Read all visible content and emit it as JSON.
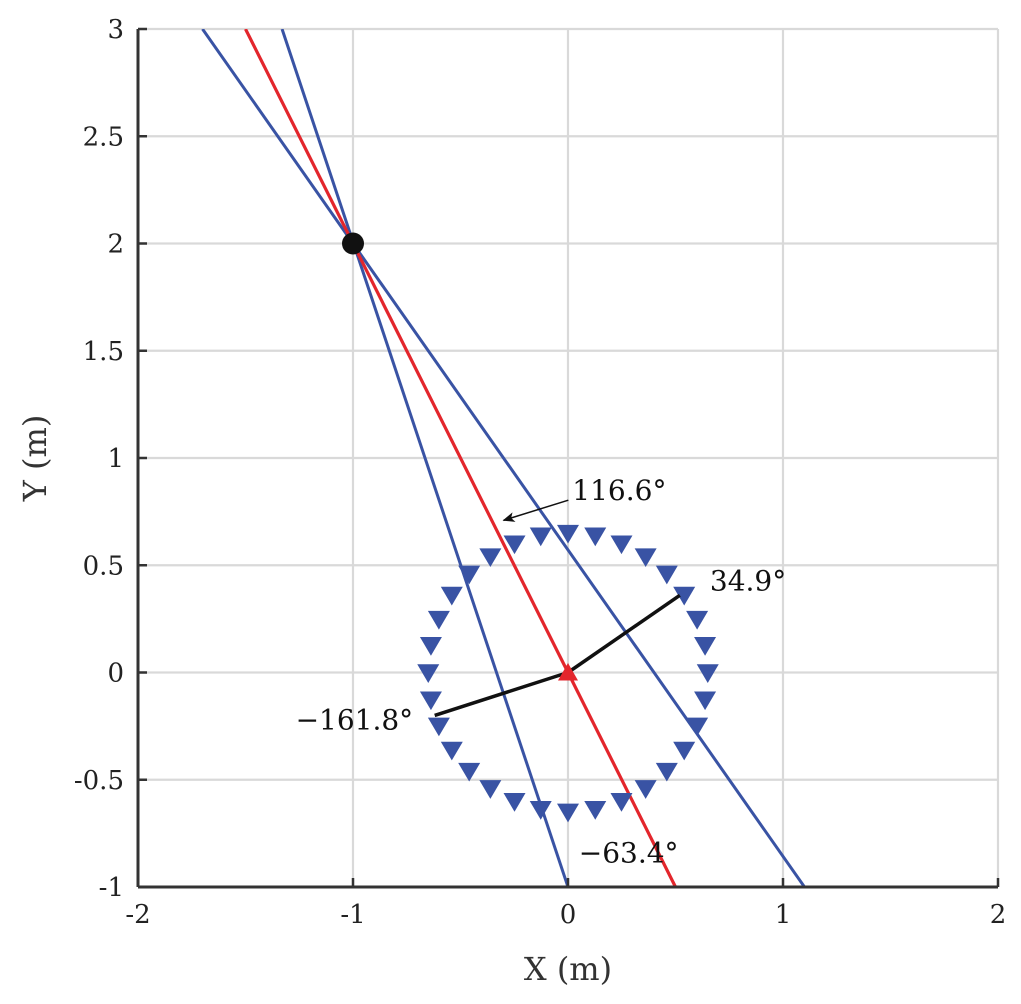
{
  "chart_data": {
    "type": "line",
    "title": "",
    "xlabel": "X (m)",
    "ylabel": "Y (m)",
    "xlim": [
      -2,
      2
    ],
    "ylim": [
      -1,
      3
    ],
    "xticks": [
      -2,
      -1,
      0,
      1,
      2
    ],
    "xtick_labels": [
      "-2",
      "-1",
      "0",
      "1",
      "2"
    ],
    "yticks": [
      -1,
      -0.5,
      0,
      0.5,
      1,
      1.5,
      2,
      2.5,
      3
    ],
    "ytick_labels": [
      "-1",
      "-0.5",
      "0",
      "0.5",
      "1",
      "1.5",
      "2",
      "2.5",
      "3"
    ],
    "grid": true,
    "colors": {
      "blue": "#3953a4",
      "red": "#e3262c",
      "black": "#111111",
      "grid": "#d9d9d9",
      "axis": "#333333"
    },
    "source": {
      "x": -1,
      "y": 2
    },
    "array_center": {
      "x": 0,
      "y": 0
    },
    "array_radius": 0.65,
    "array_element_count": 32,
    "lines": [
      {
        "id": "red-doa-line",
        "color": "red",
        "points": [
          [
            -1.5,
            3
          ],
          [
            0.5,
            -1
          ]
        ]
      },
      {
        "id": "blue-line-1",
        "color": "blue",
        "points": [
          [
            -1.7,
            3
          ],
          [
            1.1,
            -1
          ]
        ]
      },
      {
        "id": "blue-line-2",
        "color": "blue",
        "points": [
          [
            -1.33,
            3
          ],
          [
            0,
            -1
          ]
        ]
      }
    ],
    "segments": [
      {
        "id": "black-arm-right",
        "points": [
          [
            0,
            0
          ],
          [
            0.52,
            0.36
          ]
        ]
      },
      {
        "id": "black-arm-left",
        "points": [
          [
            0,
            0
          ],
          [
            -0.62,
            -0.2
          ]
        ]
      }
    ],
    "annotations": [
      {
        "id": "angle-116",
        "text": "116.6°",
        "x": 0.02,
        "y": 0.85,
        "anchor": "start",
        "arrow_to": [
          -0.3,
          0.7
        ]
      },
      {
        "id": "angle-34",
        "text": "34.9°",
        "x": 0.66,
        "y": 0.43,
        "anchor": "start"
      },
      {
        "id": "angle-neg161",
        "text": "−161.8°",
        "x": -0.72,
        "y": -0.22,
        "anchor": "end"
      },
      {
        "id": "angle-neg63",
        "text": "−63.4°",
        "x": 0.05,
        "y": -0.84,
        "anchor": "start"
      }
    ]
  }
}
